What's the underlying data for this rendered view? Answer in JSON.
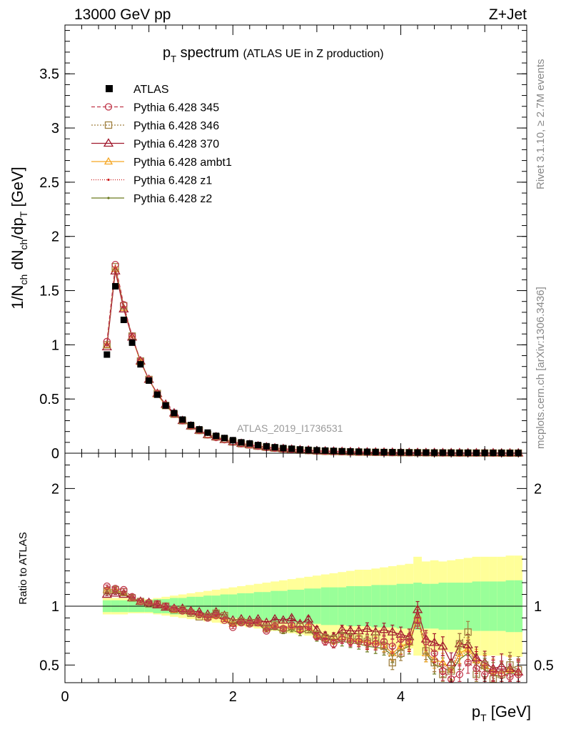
{
  "header": {
    "left_label": "13000 GeV pp",
    "right_label": "Z+Jet"
  },
  "main_title": {
    "prefix": "p",
    "subscript": "T",
    "suffix": " spectrum",
    "note": "(ATLAS UE in Z production)"
  },
  "side_labels": {
    "rivet": "Rivet 3.1.10, ≥ 2.7M events",
    "mcplots": "mcplots.cern.ch [arXiv:1306.3436]"
  },
  "analysis_label": "ATLAS_2019_I1736531",
  "ratio_ylabel": "Ratio to ATLAS",
  "colors": {
    "data": "#000000",
    "band_inner": "#99ff99",
    "band_outer": "#ffff99",
    "p345": "#c0374a",
    "p346": "#a08040",
    "p370": "#a0192d",
    "ambt1": "#f5a623",
    "z1": "#cc1a1a",
    "z2": "#6b7a1e"
  },
  "chart_data": [
    {
      "type": "scatter",
      "panel": "main",
      "xlabel": "p_T [GeV]",
      "ylabel": "1/N_ch dN_ch/dp_T [GeV]",
      "xlim": [
        0,
        5.5
      ],
      "ylim": [
        0,
        3.95
      ],
      "x_ticks": [
        "0",
        "2",
        "4"
      ],
      "y_ticks": [
        "0",
        "0.5",
        "1",
        "1.5",
        "2",
        "2.5",
        "3",
        "3.5"
      ],
      "x": [
        0.5,
        0.6,
        0.7,
        0.8,
        0.9,
        1.0,
        1.1,
        1.2,
        1.3,
        1.4,
        1.5,
        1.6,
        1.7,
        1.8,
        1.9,
        2.0,
        2.1,
        2.2,
        2.3,
        2.4,
        2.5,
        2.6,
        2.7,
        2.8,
        2.9,
        3.0,
        3.1,
        3.2,
        3.3,
        3.4,
        3.5,
        3.6,
        3.7,
        3.8,
        3.9,
        4.0,
        4.1,
        4.2,
        4.3,
        4.4,
        4.5,
        4.6,
        4.7,
        4.8,
        4.9,
        5.0,
        5.1,
        5.2,
        5.3,
        5.4
      ],
      "series": [
        {
          "name": "ATLAS",
          "values": [
            0.91,
            1.54,
            1.23,
            1.02,
            0.82,
            0.67,
            0.54,
            0.44,
            0.37,
            0.31,
            0.26,
            0.22,
            0.19,
            0.16,
            0.14,
            0.12,
            0.1,
            0.09,
            0.075,
            0.064,
            0.055,
            0.047,
            0.041,
            0.035,
            0.031,
            0.027,
            0.024,
            0.021,
            0.018,
            0.016,
            0.014,
            0.013,
            0.011,
            0.01,
            0.009,
            0.008,
            0.007,
            0.006,
            0.006,
            0.005,
            0.005,
            0.004,
            0.004,
            0.004,
            0.003,
            0.003,
            0.003,
            0.003,
            0.002,
            0.002
          ]
        },
        {
          "name": "Pythia 6.428 345",
          "values": [
            1.03,
            1.74,
            1.37,
            1.08,
            0.85,
            0.68,
            0.55,
            0.44,
            0.36,
            0.3,
            0.25,
            0.21,
            0.17,
            0.145,
            0.125,
            0.103,
            0.088,
            0.078,
            0.065,
            0.054,
            0.046,
            0.039,
            0.035,
            0.029,
            0.025,
            0.021,
            0.018,
            0.016,
            0.014,
            0.012,
            0.011,
            0.01,
            0.008,
            0.007,
            0.006,
            0.006,
            0.005,
            0.005,
            0.004,
            0.003,
            0.003,
            0.003,
            0.002,
            0.002,
            0.002,
            0.002,
            0.002,
            0.001,
            0.001,
            0.001
          ]
        },
        {
          "name": "Pythia 6.428 346",
          "values": [
            1.0,
            1.72,
            1.36,
            1.08,
            0.85,
            0.68,
            0.55,
            0.44,
            0.36,
            0.3,
            0.25,
            0.21,
            0.17,
            0.15,
            0.13,
            0.104,
            0.088,
            0.077,
            0.065,
            0.055,
            0.047,
            0.04,
            0.034,
            0.029,
            0.025,
            0.021,
            0.018,
            0.016,
            0.014,
            0.012,
            0.01,
            0.009,
            0.008,
            0.007,
            0.006,
            0.005,
            0.005,
            0.005,
            0.004,
            0.003,
            0.003,
            0.003,
            0.002,
            0.002,
            0.002,
            0.002,
            0.002,
            0.001,
            0.001,
            0.001
          ]
        },
        {
          "name": "Pythia 6.428 370",
          "values": [
            0.98,
            1.68,
            1.33,
            1.07,
            0.85,
            0.68,
            0.55,
            0.45,
            0.37,
            0.3,
            0.25,
            0.21,
            0.17,
            0.15,
            0.125,
            0.105,
            0.089,
            0.078,
            0.066,
            0.056,
            0.048,
            0.041,
            0.035,
            0.03,
            0.027,
            0.022,
            0.019,
            0.017,
            0.015,
            0.013,
            0.012,
            0.01,
            0.009,
            0.008,
            0.007,
            0.006,
            0.005,
            0.005,
            0.004,
            0.004,
            0.003,
            0.003,
            0.003,
            0.002,
            0.002,
            0.002,
            0.002,
            0.001,
            0.001,
            0.001
          ]
        },
        {
          "name": "Pythia 6.428 ambt1",
          "values": [
            1.0,
            1.7,
            1.34,
            1.07,
            0.84,
            0.68,
            0.54,
            0.44,
            0.36,
            0.3,
            0.25,
            0.21,
            0.17,
            0.15,
            0.125,
            0.103,
            0.087,
            0.077,
            0.064,
            0.054,
            0.046,
            0.039,
            0.034,
            0.029,
            0.025,
            0.021,
            0.018,
            0.016,
            0.014,
            0.012,
            0.01,
            0.009,
            0.008,
            0.007,
            0.006,
            0.005,
            0.005,
            0.005,
            0.004,
            0.003,
            0.003,
            0.003,
            0.002,
            0.002,
            0.002,
            0.002,
            0.002,
            0.001,
            0.001,
            0.001
          ]
        },
        {
          "name": "Pythia 6.428 z1",
          "values": [
            1.0,
            1.71,
            1.35,
            1.07,
            0.85,
            0.68,
            0.55,
            0.44,
            0.36,
            0.3,
            0.25,
            0.21,
            0.17,
            0.15,
            0.125,
            0.104,
            0.088,
            0.077,
            0.064,
            0.054,
            0.046,
            0.039,
            0.034,
            0.029,
            0.025,
            0.021,
            0.018,
            0.016,
            0.014,
            0.012,
            0.01,
            0.009,
            0.008,
            0.007,
            0.006,
            0.005,
            0.005,
            0.005,
            0.004,
            0.003,
            0.003,
            0.003,
            0.002,
            0.002,
            0.002,
            0.002,
            0.002,
            0.001,
            0.001,
            0.001
          ]
        },
        {
          "name": "Pythia 6.428 z2",
          "values": [
            1.0,
            1.69,
            1.34,
            1.07,
            0.85,
            0.68,
            0.55,
            0.44,
            0.36,
            0.3,
            0.25,
            0.21,
            0.17,
            0.15,
            0.125,
            0.103,
            0.087,
            0.076,
            0.063,
            0.053,
            0.045,
            0.038,
            0.033,
            0.028,
            0.024,
            0.02,
            0.017,
            0.015,
            0.013,
            0.011,
            0.01,
            0.009,
            0.007,
            0.006,
            0.005,
            0.005,
            0.004,
            0.005,
            0.004,
            0.003,
            0.003,
            0.002,
            0.002,
            0.002,
            0.002,
            0.002,
            0.001,
            0.001,
            0.001,
            0.001
          ]
        }
      ]
    },
    {
      "type": "line",
      "panel": "ratio",
      "xlabel": "p_T [GeV]",
      "ylabel": "Ratio to ATLAS",
      "xlim": [
        0,
        5.5
      ],
      "ylim": [
        0.35,
        2.3
      ],
      "x_ticks": [
        "0",
        "2",
        "4"
      ],
      "y_ticks": [
        "0.5",
        "1",
        "2"
      ],
      "x": [
        0.5,
        0.6,
        0.7,
        0.8,
        0.9,
        1.0,
        1.1,
        1.2,
        1.3,
        1.4,
        1.5,
        1.6,
        1.7,
        1.8,
        1.9,
        2.0,
        2.1,
        2.2,
        2.3,
        2.4,
        2.5,
        2.6,
        2.7,
        2.8,
        2.9,
        3.0,
        3.1,
        3.2,
        3.3,
        3.4,
        3.5,
        3.6,
        3.7,
        3.8,
        3.9,
        4.0,
        4.1,
        4.2,
        4.3,
        4.4,
        4.5,
        4.6,
        4.7,
        4.8,
        4.9,
        5.0,
        5.1,
        5.2,
        5.3,
        5.4
      ],
      "band_inner": [
        0.05,
        0.05,
        0.05,
        0.05,
        0.05,
        0.05,
        0.06,
        0.06,
        0.07,
        0.07,
        0.08,
        0.08,
        0.09,
        0.09,
        0.1,
        0.1,
        0.11,
        0.11,
        0.12,
        0.12,
        0.13,
        0.13,
        0.14,
        0.14,
        0.15,
        0.15,
        0.16,
        0.16,
        0.16,
        0.17,
        0.17,
        0.17,
        0.18,
        0.18,
        0.18,
        0.19,
        0.19,
        0.2,
        0.19,
        0.19,
        0.2,
        0.2,
        0.2,
        0.2,
        0.21,
        0.21,
        0.21,
        0.21,
        0.22,
        0.22
      ],
      "band_outer": [
        0.07,
        0.07,
        0.07,
        0.06,
        0.06,
        0.06,
        0.07,
        0.08,
        0.09,
        0.1,
        0.11,
        0.12,
        0.13,
        0.14,
        0.15,
        0.16,
        0.17,
        0.18,
        0.19,
        0.2,
        0.21,
        0.22,
        0.23,
        0.24,
        0.25,
        0.26,
        0.27,
        0.28,
        0.29,
        0.3,
        0.31,
        0.31,
        0.32,
        0.33,
        0.34,
        0.35,
        0.36,
        0.42,
        0.38,
        0.39,
        0.38,
        0.39,
        0.4,
        0.41,
        0.42,
        0.42,
        0.42,
        0.42,
        0.43,
        0.43
      ],
      "series": [
        {
          "name": "Pythia 6.428 345",
          "values": [
            1.17,
            1.15,
            1.14,
            1.08,
            1.04,
            1.03,
            1.02,
            1.0,
            0.98,
            0.96,
            0.95,
            0.93,
            0.9,
            0.92,
            0.88,
            0.82,
            0.86,
            0.85,
            0.86,
            0.79,
            0.83,
            0.81,
            0.84,
            0.8,
            0.83,
            0.74,
            0.7,
            0.68,
            0.72,
            0.7,
            0.7,
            0.69,
            0.68,
            0.7,
            0.66,
            0.72,
            0.7,
            0.88,
            0.7,
            0.6,
            0.45,
            0.38,
            0.42,
            0.52,
            0.47,
            0.42,
            0.44,
            0.43,
            0.4,
            0.42
          ]
        },
        {
          "name": "Pythia 6.428 346",
          "values": [
            1.13,
            1.14,
            1.12,
            1.07,
            1.04,
            1.02,
            1.02,
            1.0,
            0.97,
            0.97,
            0.94,
            0.91,
            0.91,
            0.94,
            0.92,
            0.86,
            0.87,
            0.86,
            0.86,
            0.82,
            0.84,
            0.8,
            0.83,
            0.83,
            0.8,
            0.76,
            0.73,
            0.72,
            0.74,
            0.73,
            0.72,
            0.7,
            0.73,
            0.66,
            0.52,
            0.6,
            0.7,
            0.88,
            0.62,
            0.52,
            0.42,
            0.45,
            0.68,
            0.78,
            0.42,
            0.5,
            0.38,
            0.42,
            0.5,
            0.46
          ]
        },
        {
          "name": "Pythia 6.428 370",
          "values": [
            1.1,
            1.11,
            1.1,
            1.07,
            1.04,
            1.03,
            1.01,
            0.99,
            0.98,
            0.98,
            0.96,
            0.95,
            0.93,
            0.95,
            0.92,
            0.88,
            0.89,
            0.88,
            0.89,
            0.86,
            0.89,
            0.88,
            0.9,
            0.85,
            0.89,
            0.8,
            0.75,
            0.74,
            0.8,
            0.79,
            0.79,
            0.81,
            0.78,
            0.8,
            0.78,
            0.76,
            0.74,
            0.97,
            0.72,
            0.69,
            0.66,
            0.52,
            0.68,
            0.67,
            0.56,
            0.52,
            0.47,
            0.49,
            0.47,
            0.44
          ]
        },
        {
          "name": "Pythia 6.428 ambt1",
          "values": [
            1.14,
            1.14,
            1.11,
            1.07,
            1.04,
            1.03,
            1.02,
            0.99,
            0.97,
            0.96,
            0.95,
            0.93,
            0.91,
            0.92,
            0.89,
            0.85,
            0.87,
            0.86,
            0.86,
            0.81,
            0.84,
            0.81,
            0.83,
            0.81,
            0.83,
            0.76,
            0.73,
            0.71,
            0.74,
            0.72,
            0.71,
            0.69,
            0.69,
            0.67,
            0.6,
            0.66,
            0.69,
            0.92,
            0.6,
            0.55,
            0.52,
            0.46,
            0.6,
            0.64,
            0.54,
            0.49,
            0.45,
            0.43,
            0.46,
            0.44
          ]
        },
        {
          "name": "Pythia 6.428 z1",
          "values": [
            1.14,
            1.14,
            1.11,
            1.07,
            1.04,
            1.03,
            1.02,
            0.99,
            0.97,
            0.96,
            0.95,
            0.93,
            0.91,
            0.92,
            0.89,
            0.85,
            0.87,
            0.86,
            0.86,
            0.8,
            0.83,
            0.8,
            0.82,
            0.8,
            0.82,
            0.75,
            0.72,
            0.71,
            0.72,
            0.71,
            0.7,
            0.68,
            0.68,
            0.66,
            0.6,
            0.65,
            0.68,
            0.9,
            0.62,
            0.52,
            0.5,
            0.45,
            0.58,
            0.62,
            0.52,
            0.48,
            0.44,
            0.43,
            0.46,
            0.43
          ]
        },
        {
          "name": "Pythia 6.428 z2",
          "values": [
            1.12,
            1.12,
            1.1,
            1.06,
            1.04,
            1.02,
            1.01,
            0.99,
            0.97,
            0.96,
            0.94,
            0.92,
            0.9,
            0.91,
            0.88,
            0.84,
            0.86,
            0.85,
            0.85,
            0.79,
            0.81,
            0.78,
            0.8,
            0.77,
            0.8,
            0.73,
            0.7,
            0.68,
            0.7,
            0.69,
            0.68,
            0.66,
            0.65,
            0.64,
            0.58,
            0.63,
            0.66,
            0.93,
            0.6,
            0.5,
            0.48,
            0.44,
            0.55,
            0.6,
            0.5,
            0.46,
            0.42,
            0.4,
            0.44,
            0.41
          ]
        }
      ]
    }
  ]
}
